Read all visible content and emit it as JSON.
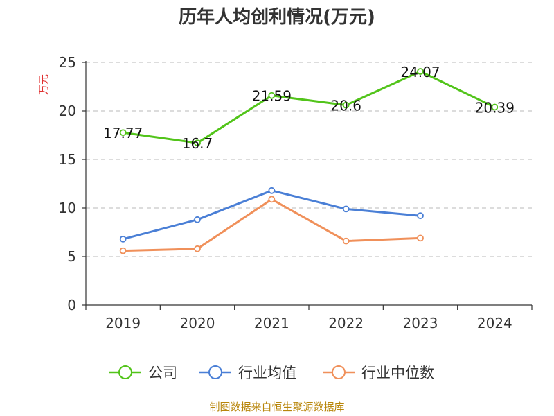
{
  "chart_data": {
    "type": "line",
    "title": "历年人均创利情况(万元)",
    "ylabel": "万元",
    "xlabel": "",
    "categories": [
      "2019",
      "2020",
      "2021",
      "2022",
      "2023",
      "2024"
    ],
    "ylim": [
      0,
      25
    ],
    "yticks": [
      0,
      5,
      10,
      15,
      20,
      25
    ],
    "grid": true,
    "legend_position": "bottom",
    "series": [
      {
        "name": "公司",
        "color": "#52c41a",
        "values": [
          17.77,
          16.7,
          21.59,
          20.6,
          24.07,
          20.39
        ],
        "labels": [
          "17.77",
          "16.7",
          "21.59",
          "20.6",
          "24.07",
          "20.39"
        ]
      },
      {
        "name": "行业均值",
        "color": "#4a7fd6",
        "values": [
          6.8,
          8.8,
          11.8,
          9.9,
          9.2,
          null
        ]
      },
      {
        "name": "行业中位数",
        "color": "#f0905a",
        "values": [
          5.6,
          5.8,
          10.9,
          6.6,
          6.9,
          null
        ]
      }
    ]
  },
  "source": "制图数据来自恒生聚源数据库"
}
